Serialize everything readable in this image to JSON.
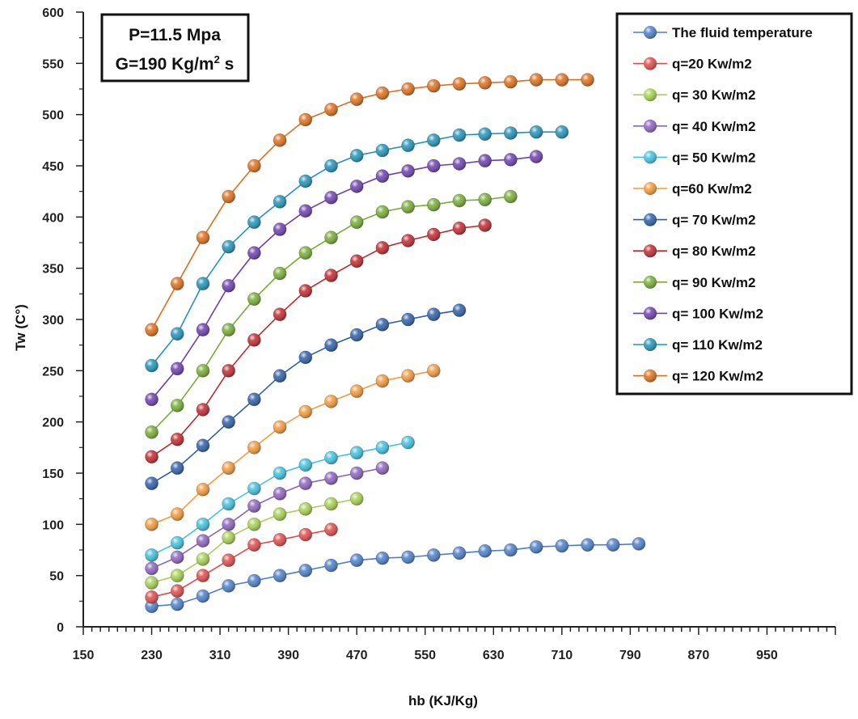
{
  "chart_data": {
    "type": "line",
    "xlabel": "hb (KJ/Kg)",
    "ylabel": "Tw (C°)",
    "xlim": [
      150,
      1030
    ],
    "ylim": [
      0,
      600
    ],
    "xticks": [
      "150",
      "230",
      "310",
      "390",
      "470",
      "550",
      "630",
      "710",
      "790",
      "870",
      "950"
    ],
    "yticks": [
      "0",
      "50",
      "100",
      "150",
      "200",
      "250",
      "300",
      "350",
      "400",
      "450",
      "500",
      "550",
      "600"
    ],
    "grid": false,
    "legend_position": "top-right",
    "annotation": {
      "line1": "P=11.5 Mpa",
      "line2_prefix": "G=190 Kg/m",
      "line2_sup": "2",
      "line2_suffix": " s"
    },
    "series": [
      {
        "name": "The fluid temperature",
        "color": "#4a7fc9",
        "x": [
          230,
          260,
          290,
          320,
          350,
          380,
          410,
          440,
          470,
          500,
          530,
          560,
          590,
          620,
          650,
          680,
          710,
          740,
          770,
          800
        ],
        "y": [
          20,
          22,
          30,
          40,
          45,
          50,
          55,
          60,
          65,
          67,
          68,
          70,
          72,
          74,
          75,
          78,
          79,
          80,
          80,
          81
        ]
      },
      {
        "name": "q=20 Kw/m2",
        "color": "#e24a4a",
        "x": [
          230,
          260,
          290,
          320,
          350,
          380,
          410,
          440
        ],
        "y": [
          29,
          35,
          50,
          65,
          80,
          85,
          90,
          95
        ]
      },
      {
        "name": "q= 30 Kw/m2",
        "color": "#a6d24f",
        "x": [
          230,
          260,
          290,
          320,
          350,
          380,
          410,
          440,
          470
        ],
        "y": [
          43,
          50,
          66,
          87,
          100,
          110,
          115,
          120,
          125
        ]
      },
      {
        "name": "q= 40 Kw/m2",
        "color": "#8e62c0",
        "x": [
          230,
          260,
          290,
          320,
          350,
          380,
          410,
          440,
          470,
          500
        ],
        "y": [
          57,
          68,
          84,
          100,
          118,
          130,
          140,
          145,
          150,
          155
        ]
      },
      {
        "name": "q= 50 Kw/m2",
        "color": "#3fc2e0",
        "x": [
          230,
          260,
          290,
          320,
          350,
          380,
          410,
          440,
          470,
          500,
          530
        ],
        "y": [
          70,
          82,
          100,
          120,
          135,
          150,
          158,
          165,
          170,
          175,
          180
        ]
      },
      {
        "name": "q=60 Kw/m2",
        "color": "#f59a3a",
        "x": [
          230,
          260,
          290,
          320,
          350,
          380,
          410,
          440,
          470,
          500,
          530,
          560
        ],
        "y": [
          100,
          110,
          134,
          155,
          175,
          195,
          210,
          220,
          230,
          240,
          245,
          250
        ]
      },
      {
        "name": "q= 70 Kw/m2",
        "color": "#2d5ea8",
        "x": [
          230,
          260,
          290,
          320,
          350,
          380,
          410,
          440,
          470,
          500,
          530,
          560,
          590
        ],
        "y": [
          140,
          155,
          177,
          200,
          222,
          245,
          263,
          275,
          285,
          295,
          300,
          305,
          309
        ]
      },
      {
        "name": "q= 80 Kw/m2",
        "color": "#c0282d",
        "x": [
          230,
          260,
          290,
          320,
          350,
          380,
          410,
          440,
          470,
          500,
          530,
          560,
          590,
          620
        ],
        "y": [
          166,
          183,
          212,
          250,
          280,
          305,
          328,
          343,
          357,
          370,
          377,
          383,
          389,
          392
        ]
      },
      {
        "name": "q= 90 Kw/m2",
        "color": "#76ad33",
        "x": [
          230,
          260,
          290,
          320,
          350,
          380,
          410,
          440,
          470,
          500,
          530,
          560,
          590,
          620,
          650
        ],
        "y": [
          190,
          216,
          250,
          290,
          320,
          345,
          365,
          380,
          395,
          405,
          410,
          412,
          416,
          417,
          420
        ]
      },
      {
        "name": "q= 100 Kw/m2",
        "color": "#6c3fae",
        "x": [
          230,
          260,
          290,
          320,
          350,
          380,
          410,
          440,
          470,
          500,
          530,
          560,
          590,
          620,
          650,
          680
        ],
        "y": [
          222,
          252,
          290,
          333,
          365,
          388,
          406,
          419,
          430,
          440,
          445,
          450,
          452,
          455,
          456,
          459
        ]
      },
      {
        "name": "q= 110 Kw/m2",
        "color": "#1f93b8",
        "x": [
          230,
          260,
          290,
          320,
          350,
          380,
          410,
          440,
          470,
          500,
          530,
          560,
          590,
          620,
          650,
          680,
          710
        ],
        "y": [
          255,
          286,
          335,
          371,
          395,
          415,
          435,
          450,
          460,
          465,
          470,
          475,
          480,
          481,
          482,
          483,
          483
        ]
      },
      {
        "name": "q= 120 Kw/m2",
        "color": "#de6f1a",
        "x": [
          230,
          260,
          290,
          320,
          350,
          380,
          410,
          440,
          470,
          500,
          530,
          560,
          590,
          620,
          650,
          680,
          710,
          740
        ],
        "y": [
          290,
          335,
          380,
          420,
          450,
          475,
          495,
          505,
          515,
          521,
          525,
          528,
          530,
          531,
          532,
          534,
          534,
          534
        ]
      }
    ]
  }
}
